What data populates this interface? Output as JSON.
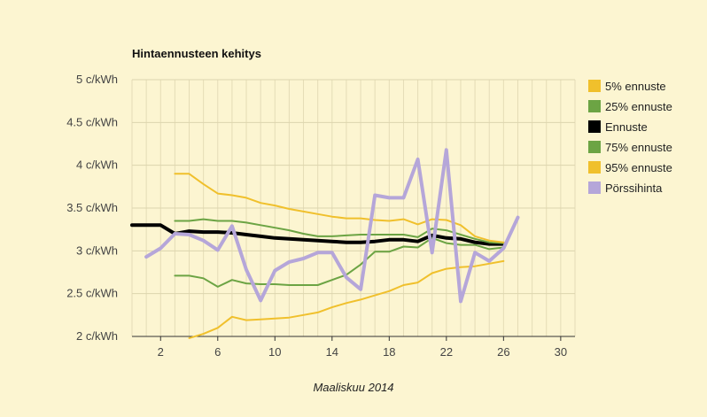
{
  "chart_data": {
    "type": "line",
    "title": "Hintaennusteen kehitys",
    "xlabel": "Maaliskuu 2014",
    "ylabel": "",
    "xlim": [
      0,
      31
    ],
    "ylim": [
      2,
      5
    ],
    "grid": true,
    "legend_position": "right",
    "x_ticks": [
      {
        "value": 2,
        "label": "2"
      },
      {
        "value": 6,
        "label": "6"
      },
      {
        "value": 10,
        "label": "10"
      },
      {
        "value": 14,
        "label": "14"
      },
      {
        "value": 18,
        "label": "18"
      },
      {
        "value": 22,
        "label": "22"
      },
      {
        "value": 26,
        "label": "26"
      },
      {
        "value": 30,
        "label": "30"
      }
    ],
    "y_ticks": [
      {
        "value": 2,
        "label": "2 c/kWh"
      },
      {
        "value": 2.5,
        "label": "2.5 c/kWh"
      },
      {
        "value": 3,
        "label": "3 c/kWh"
      },
      {
        "value": 3.5,
        "label": "3.5 c/kWh"
      },
      {
        "value": 4,
        "label": "4 c/kWh"
      },
      {
        "value": 4.5,
        "label": "4.5 c/kWh"
      },
      {
        "value": 5,
        "label": "5 c/kWh"
      }
    ],
    "series": [
      {
        "name": "5% ennuste",
        "color": "#f0c02c",
        "width": 2,
        "x": [
          4,
          5,
          6,
          7,
          8,
          9,
          10,
          11,
          12,
          13,
          14,
          15,
          16,
          17,
          18,
          19,
          20,
          21,
          22,
          23,
          24,
          25,
          26
        ],
        "y": [
          1.98,
          2.03,
          2.1,
          2.23,
          2.19,
          2.2,
          2.21,
          2.22,
          2.25,
          2.28,
          2.34,
          2.39,
          2.43,
          2.48,
          2.53,
          2.6,
          2.63,
          2.74,
          2.79,
          2.81,
          2.82,
          2.85,
          2.88
        ]
      },
      {
        "name": "25% ennuste",
        "color": "#6ca444",
        "width": 2,
        "x": [
          3,
          4,
          5,
          6,
          7,
          8,
          9,
          10,
          11,
          12,
          13,
          14,
          15,
          16,
          17,
          18,
          19,
          20,
          21,
          22,
          23,
          24,
          25,
          26
        ],
        "y": [
          2.71,
          2.71,
          2.68,
          2.58,
          2.66,
          2.62,
          2.61,
          2.61,
          2.6,
          2.6,
          2.6,
          2.66,
          2.72,
          2.84,
          2.99,
          2.99,
          3.05,
          3.04,
          3.15,
          3.09,
          3.07,
          3.07,
          3.02,
          3.04
        ]
      },
      {
        "name": "Ennuste",
        "color": "#000000",
        "width": 4,
        "x": [
          0,
          1,
          2,
          3,
          4,
          5,
          6,
          7,
          8,
          9,
          10,
          11,
          12,
          13,
          14,
          15,
          16,
          17,
          18,
          19,
          20,
          21,
          22,
          23,
          24,
          25,
          26
        ],
        "y": [
          3.3,
          3.3,
          3.3,
          3.2,
          3.23,
          3.22,
          3.22,
          3.21,
          3.19,
          3.17,
          3.15,
          3.14,
          3.13,
          3.12,
          3.11,
          3.1,
          3.1,
          3.11,
          3.13,
          3.13,
          3.11,
          3.18,
          3.15,
          3.14,
          3.1,
          3.08,
          3.08
        ]
      },
      {
        "name": "75% ennuste",
        "color": "#6ca444",
        "width": 2,
        "x": [
          3,
          4,
          5,
          6,
          7,
          8,
          9,
          10,
          11,
          12,
          13,
          14,
          15,
          16,
          17,
          18,
          19,
          20,
          21,
          22,
          23,
          24,
          25,
          26
        ],
        "y": [
          3.35,
          3.35,
          3.37,
          3.35,
          3.35,
          3.33,
          3.3,
          3.27,
          3.24,
          3.2,
          3.17,
          3.17,
          3.18,
          3.19,
          3.19,
          3.19,
          3.19,
          3.16,
          3.26,
          3.24,
          3.19,
          3.14,
          3.1,
          3.09
        ]
      },
      {
        "name": "95% ennuste",
        "color": "#f0c02c",
        "width": 2,
        "x": [
          3,
          4,
          5,
          6,
          7,
          8,
          9,
          10,
          11,
          12,
          13,
          14,
          15,
          16,
          17,
          18,
          19,
          20,
          21,
          22,
          23,
          24,
          25,
          26
        ],
        "y": [
          3.9,
          3.9,
          3.78,
          3.67,
          3.65,
          3.62,
          3.56,
          3.53,
          3.49,
          3.46,
          3.43,
          3.4,
          3.38,
          3.38,
          3.36,
          3.35,
          3.37,
          3.31,
          3.37,
          3.36,
          3.3,
          3.17,
          3.12,
          3.1
        ]
      },
      {
        "name": "Pörssihinta",
        "color": "#b5a6d9",
        "width": 4,
        "x": [
          1,
          2,
          3,
          4,
          5,
          6,
          7,
          8,
          9,
          10,
          11,
          12,
          13,
          14,
          15,
          16,
          17,
          18,
          19,
          20,
          21,
          22,
          23,
          24,
          25,
          26,
          27
        ],
        "y": [
          2.93,
          3.03,
          3.2,
          3.19,
          3.12,
          3.01,
          3.29,
          2.78,
          2.42,
          2.77,
          2.87,
          2.91,
          2.98,
          2.98,
          2.69,
          2.55,
          3.65,
          3.62,
          3.62,
          4.07,
          2.98,
          4.18,
          2.41,
          2.98,
          2.88,
          3.03,
          3.39
        ]
      }
    ]
  }
}
